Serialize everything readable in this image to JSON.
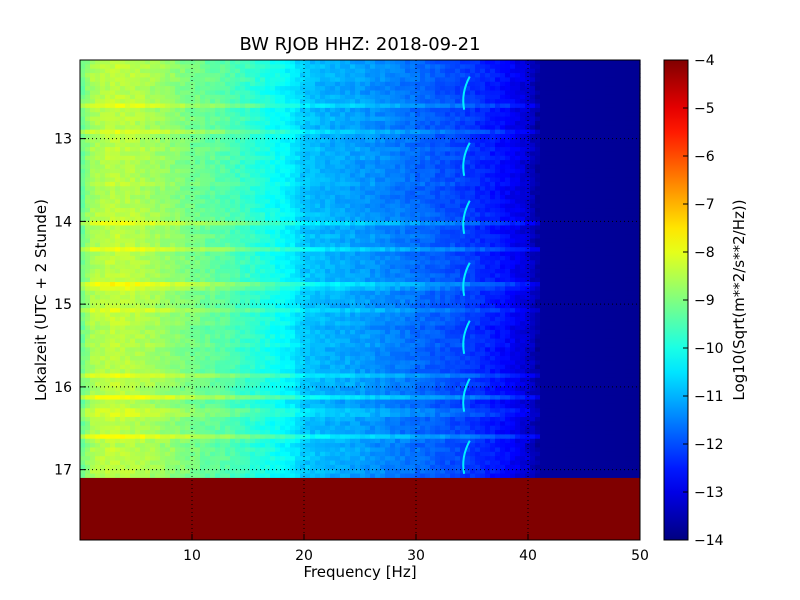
{
  "chart_data": {
    "type": "heatmap",
    "title": "BW RJOB HHZ: 2018-09-21",
    "xlabel": "Frequency [Hz]",
    "ylabel": "Lokalzeit (UTC + 2 Stunde)",
    "xlim": [
      0,
      50
    ],
    "ylim_hours": [
      12.05,
      17.85
    ],
    "x_ticks": [
      "10",
      "20",
      "30",
      "40",
      "50"
    ],
    "x_tick_values": [
      10,
      20,
      30,
      40,
      50
    ],
    "y_ticks": [
      "13",
      "14",
      "15",
      "16",
      "17"
    ],
    "y_tick_values": [
      13,
      14,
      15,
      16,
      17
    ],
    "grid": true,
    "colorbar": {
      "label": "Log10(Sqrt(m**2/s**2/Hz))",
      "range": [
        -14,
        -4
      ],
      "ticks": [
        "−4",
        "−5",
        "−6",
        "−7",
        "−8",
        "−9",
        "−10",
        "−11",
        "−12",
        "−13",
        "−14"
      ],
      "tick_values": [
        -4,
        -5,
        -6,
        -7,
        -8,
        -9,
        -10,
        -11,
        -12,
        -13,
        -14
      ],
      "colormap": "jet"
    },
    "data_end_hour": 17.1,
    "no_data_value": -4,
    "spectrum_profile": {
      "freq_hz": [
        0,
        1,
        3,
        5,
        8,
        10,
        13,
        16,
        19,
        20,
        22,
        25,
        28,
        31,
        34,
        36,
        38,
        40,
        41,
        50
      ],
      "level": [
        -9.3,
        -8.6,
        -8.4,
        -8.5,
        -8.8,
        -9.1,
        -9.4,
        -9.9,
        -10.4,
        -10.8,
        -11.0,
        -11.2,
        -11.5,
        -11.8,
        -12.1,
        -12.4,
        -12.7,
        -13.2,
        -13.7,
        -13.8
      ]
    },
    "notable_features": {
      "recurring_line_freq_hz": 34.5,
      "recurring_line_times_hours": [
        12.45,
        13.25,
        13.95,
        14.7,
        15.4,
        16.1,
        16.85
      ]
    }
  }
}
